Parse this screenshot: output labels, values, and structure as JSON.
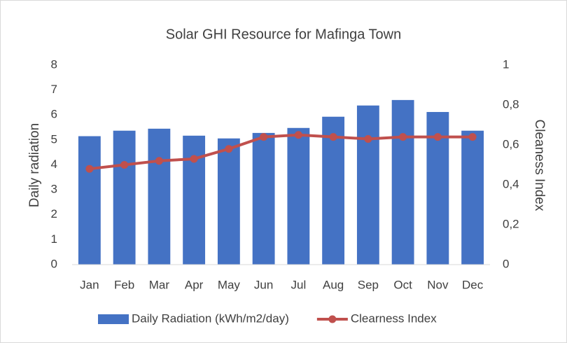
{
  "chart_data": {
    "type": "bar-line",
    "title": "Solar GHI Resource for Mafinga Town",
    "y_label": "Daily radiation",
    "y2_label": "Cleaness Index",
    "categories": [
      "Jan",
      "Feb",
      "Mar",
      "Apr",
      "May",
      "Jun",
      "Jul",
      "Aug",
      "Sep",
      "Oct",
      "Nov",
      "Dec"
    ],
    "series": [
      {
        "name": "Daily Radiation (kWh/m2/day)",
        "type": "bar",
        "color": "#4472c4",
        "axis": "y",
        "values": [
          5.15,
          5.37,
          5.45,
          5.17,
          5.06,
          5.28,
          5.48,
          5.93,
          6.38,
          6.6,
          6.12,
          5.37
        ]
      },
      {
        "name": "Clearness Index",
        "type": "line",
        "color": "#c0504d",
        "axis": "y2",
        "values": [
          0.48,
          0.5,
          0.52,
          0.53,
          0.58,
          0.64,
          0.65,
          0.64,
          0.63,
          0.64,
          0.64,
          0.64
        ]
      }
    ],
    "ylim": [
      0,
      8
    ],
    "yticks": [
      0,
      1,
      2,
      3,
      4,
      5,
      6,
      7,
      8
    ],
    "y2lim": [
      0,
      1
    ],
    "y2ticks": [
      0,
      {
        "value": 0.2,
        "label": "0,2"
      },
      {
        "value": 0.4,
        "label": "0,4"
      },
      {
        "value": 0.6,
        "label": "0,6"
      },
      {
        "value": 0.8,
        "label": "0,8"
      },
      1
    ],
    "legend": "bottom"
  }
}
